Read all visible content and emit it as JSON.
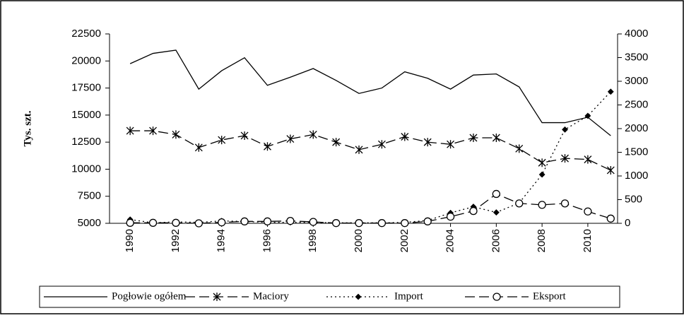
{
  "chart_data": {
    "type": "line",
    "y_label": "Tys. szt.",
    "x": [
      1990,
      1991,
      1992,
      1993,
      1994,
      1995,
      1996,
      1997,
      1998,
      1999,
      2000,
      2001,
      2002,
      2003,
      2004,
      2005,
      2006,
      2007,
      2008,
      2009,
      2010,
      2011
    ],
    "xlim": [
      1989.1,
      2011.3
    ],
    "xticks": [
      1990,
      1992,
      1994,
      1996,
      1998,
      2000,
      2002,
      2004,
      2006,
      2008,
      2010
    ],
    "ylim": [
      5000,
      22500
    ],
    "yticks": [
      5000,
      7500,
      10000,
      12500,
      15000,
      17500,
      20000,
      22500
    ],
    "y2lim": [
      0,
      4000
    ],
    "y2ticks": [
      0,
      500,
      1000,
      1500,
      2000,
      2500,
      3000,
      3500,
      4000
    ],
    "legend": "bottom",
    "series": [
      {
        "name": "Pogłowie ogółem",
        "color": "#000000",
        "line": "solid",
        "marker": "none",
        "values": [
          19750,
          20700,
          21000,
          17400,
          19100,
          20300,
          17750,
          18500,
          19300,
          18200,
          17000,
          17500,
          19000,
          18400,
          17400,
          18700,
          18800,
          17600,
          14300,
          14300,
          14800,
          13100
        ]
      },
      {
        "name": "Maciory",
        "color": "#000000",
        "line": "dashed",
        "marker": "star",
        "values": [
          13550,
          13550,
          13200,
          12000,
          12700,
          13100,
          12100,
          12800,
          13200,
          12500,
          11800,
          12300,
          13000,
          12500,
          12300,
          12900,
          12900,
          11900,
          10600,
          11000,
          10900,
          9900
        ]
      },
      {
        "name": "Import",
        "color": "#000000",
        "line": "dotted",
        "marker": "diamond",
        "axis": "y2",
        "values": [
          80,
          10,
          30,
          20,
          50,
          40,
          20,
          20,
          20,
          10,
          10,
          10,
          20,
          60,
          220,
          350,
          230,
          430,
          1030,
          1980,
          2270,
          2780
        ]
      },
      {
        "name": "Eksport",
        "color": "#000000",
        "line": "dashed",
        "marker": "circle",
        "axis": "y2",
        "values": [
          10,
          10,
          10,
          0,
          20,
          40,
          40,
          50,
          30,
          5,
          5,
          5,
          5,
          40,
          140,
          260,
          620,
          420,
          390,
          420,
          250,
          100
        ]
      }
    ]
  }
}
